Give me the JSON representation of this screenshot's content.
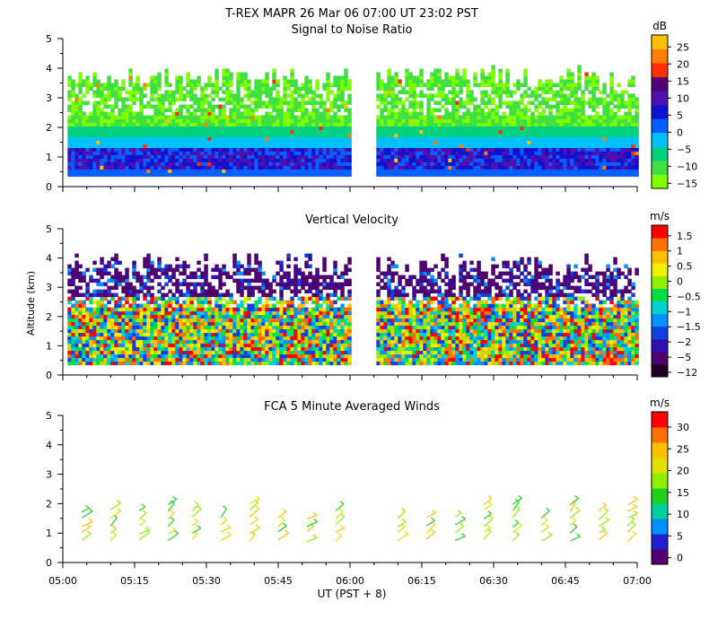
{
  "title": "T-REX   MAPR 26 Mar 06   07:00 UT   23:02   PST",
  "xlabel": "UT  (PST + 8)",
  "ylabel": "Altitude (km)",
  "x_ticks": [
    "05:00",
    "05:15",
    "05:30",
    "05:45",
    "06:00",
    "06:15",
    "06:30",
    "06:45",
    "07:00"
  ],
  "y_ticks": [
    "0",
    "1",
    "2",
    "3",
    "4",
    "5"
  ],
  "colors": {
    "snr": [
      "#80ff00",
      "#40e040",
      "#00d080",
      "#00c0ff",
      "#0060ff",
      "#1010d0",
      "#5010b0",
      "#500070",
      "#ff3000",
      "#ff8000",
      "#ffc000"
    ],
    "vel": [
      "#200020",
      "#500070",
      "#3010b0",
      "#1040e0",
      "#0090ff",
      "#00d0d0",
      "#00e040",
      "#90f000",
      "#f0f000",
      "#ffc000",
      "#ff7000",
      "#ff0000"
    ],
    "wind": [
      "#500070",
      "#2020d0",
      "#0090ff",
      "#00d0a0",
      "#20d020",
      "#90ee00",
      "#e0e000",
      "#ffc000",
      "#ff7000",
      "#ff0000"
    ]
  },
  "chart_data": [
    {
      "type": "heatmap",
      "title": "Signal to Noise Ratio",
      "units": "dB",
      "colorbar_labels": [
        "25",
        "20",
        "15",
        "10",
        "5",
        "0",
        "−5",
        "−10",
        "−15"
      ],
      "x_range": [
        "05:00",
        "07:00"
      ],
      "ylim": [
        0,
        5
      ],
      "data_gap": [
        "06:00",
        "06:05"
      ],
      "data_extent_km": [
        0.3,
        4.2
      ]
    },
    {
      "type": "heatmap",
      "title": "Vertical Velocity",
      "units": "m/s",
      "colorbar_labels": [
        "1.5",
        "1",
        "0.5",
        "0",
        "−0.5",
        "−1",
        "−1.5",
        "−2",
        "−5",
        "−12"
      ],
      "x_range": [
        "05:00",
        "07:00"
      ],
      "ylim": [
        0,
        5
      ],
      "data_gap": [
        "06:00",
        "06:05"
      ],
      "data_extent_km": [
        0.3,
        4.1
      ]
    },
    {
      "type": "scatter",
      "title": "FCA 5 Minute Averaged Winds",
      "units": "m/s",
      "colorbar_labels": [
        "30",
        "25",
        "20",
        "15",
        "10",
        "5",
        "0"
      ],
      "x_range": [
        "05:00",
        "07:00"
      ],
      "ylim": [
        0,
        5
      ],
      "profile_times_min": [
        4,
        10,
        16,
        22,
        27,
        33,
        39,
        45,
        51,
        57,
        70,
        76,
        82,
        88,
        94,
        100,
        106,
        112,
        118
      ]
    }
  ]
}
